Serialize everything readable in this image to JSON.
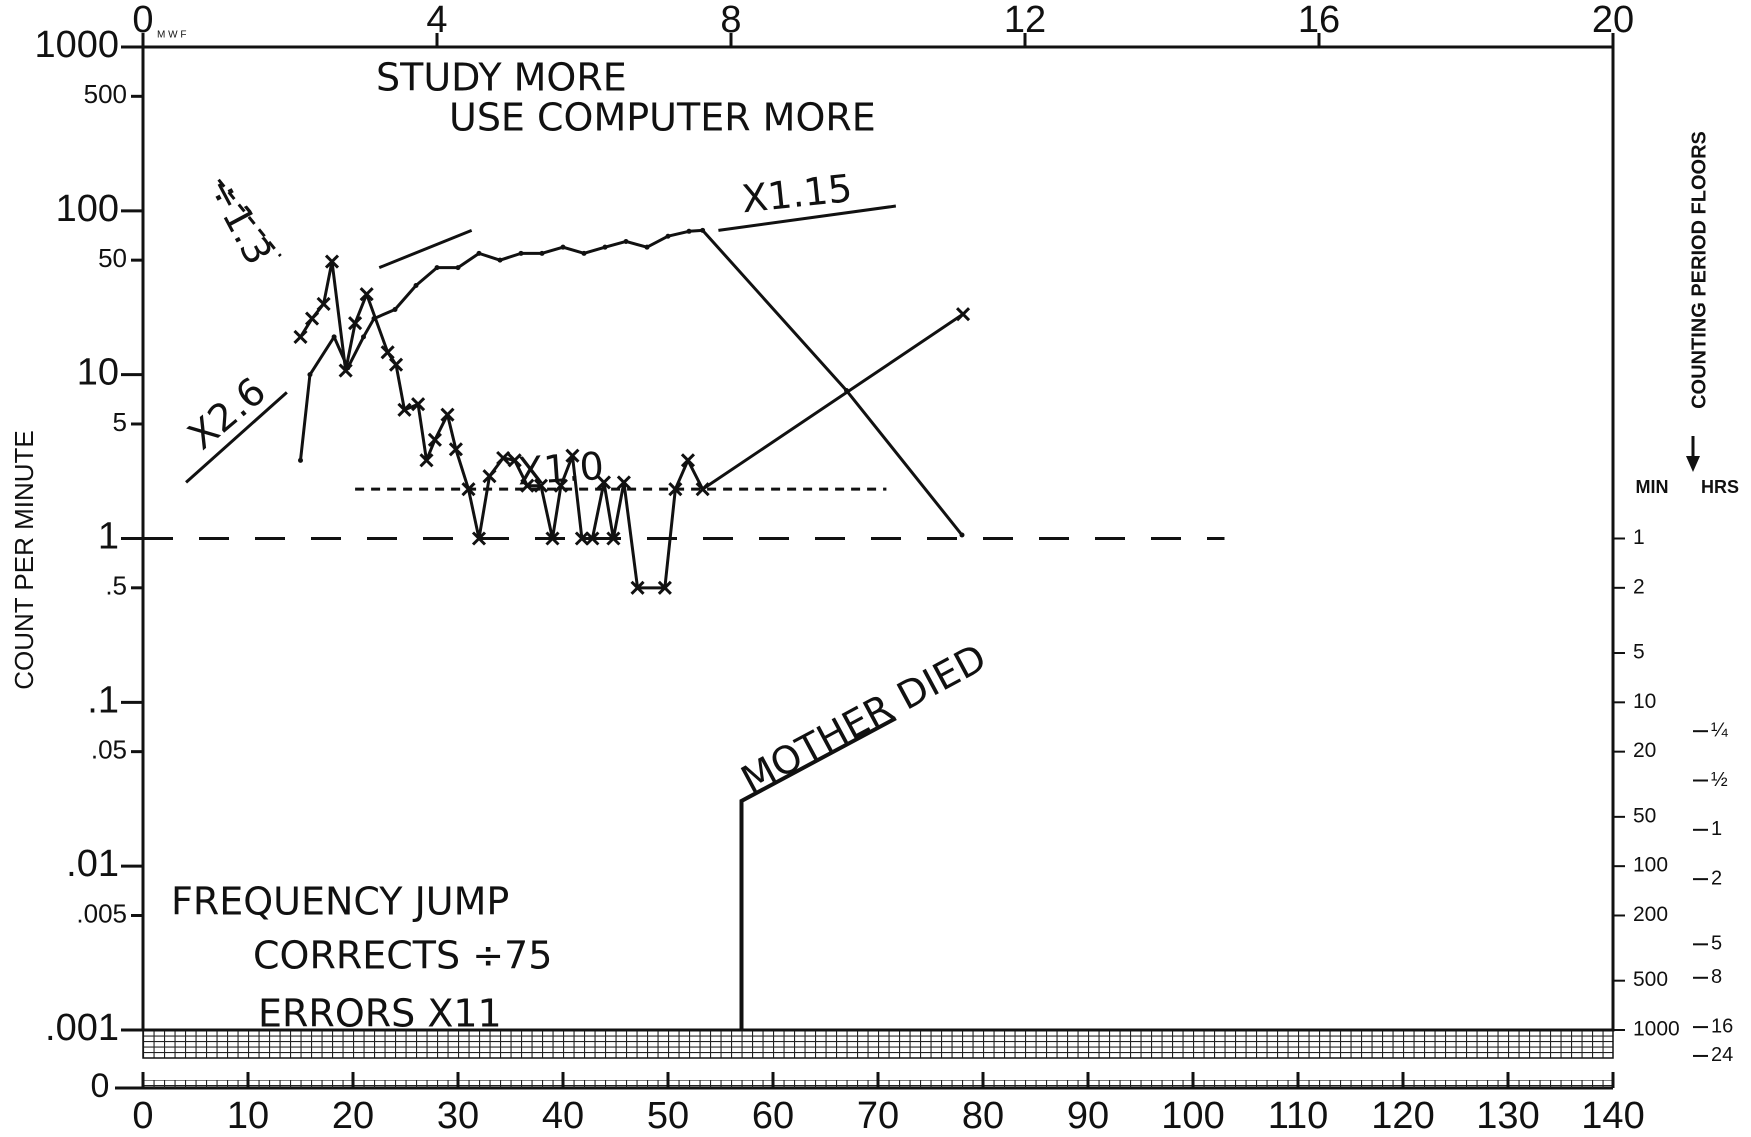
{
  "chart_data": {
    "type": "line",
    "ylog": true,
    "ylabel": "COUNT PER MINUTE",
    "ylim": [
      0.001,
      1000
    ],
    "yticks": [
      {
        "value": 0.001,
        "label": ".001"
      },
      {
        "value": 0.005,
        "label": ".005"
      },
      {
        "value": 0.01,
        "label": ".01"
      },
      {
        "value": 0.05,
        "label": ".05"
      },
      {
        "value": 0.1,
        "label": ".1"
      },
      {
        "value": 0.5,
        "label": ".5"
      },
      1,
      5,
      10,
      50,
      100,
      500,
      1000
    ],
    "y_zero_label": "0",
    "xlim": [
      0,
      140
    ],
    "xticks": [
      0,
      10,
      20,
      30,
      40,
      50,
      60,
      70,
      80,
      90,
      100,
      110,
      120,
      130,
      140
    ],
    "x2lim": [
      0,
      20
    ],
    "x2ticks": [
      0,
      4,
      8,
      12,
      16,
      20
    ],
    "x2_days_label": "M W F",
    "y2label": "COUNTING PERIOD FLOORS",
    "y2log": true,
    "y2lim": [
      1000,
      0.001
    ],
    "y2_min_label": "MIN",
    "y2ticks": [
      1,
      2,
      5,
      10,
      20,
      50,
      100,
      200,
      500,
      1000
    ],
    "y2_hrs_label": "HRS",
    "y2ticks_hrs": [
      {
        "value": 15,
        "label": "¼"
      },
      {
        "value": 30,
        "label": "½"
      },
      {
        "value": 60,
        "label": "1"
      },
      {
        "value": 120,
        "label": "2"
      },
      {
        "value": 300,
        "label": "5"
      },
      {
        "value": 480,
        "label": "8"
      },
      {
        "value": 960,
        "label": "16"
      },
      {
        "value": 1440,
        "label": "24"
      }
    ],
    "series": [
      {
        "color": "#111111",
        "marker": "none",
        "x": [
          15,
          15.9,
          18.2,
          19.5,
          21,
          22,
          24,
          26,
          28,
          30,
          32,
          34,
          36,
          38,
          40,
          42,
          44,
          46,
          48,
          50,
          52,
          53.3,
          67,
          78
        ],
        "values": [
          3,
          10,
          17,
          11,
          17,
          22,
          25,
          35,
          45,
          45,
          55,
          50,
          55,
          55,
          60,
          55,
          60,
          65,
          60,
          70,
          75,
          76,
          8,
          1.05
        ]
      },
      {
        "color": "#111111",
        "marker": "x",
        "x": [
          15,
          16.1,
          17.2,
          18,
          19.3,
          20.2,
          21.3,
          23.3,
          24.1,
          24.9,
          26.2,
          27,
          27.8,
          29,
          29.8,
          31,
          32,
          33,
          34.3,
          35.4,
          36.6,
          37.9,
          39,
          39.8,
          40.9,
          41.8,
          42.8,
          43.9,
          44.8,
          45.8,
          47.1,
          49.7,
          50.7,
          51.9,
          53.3,
          78.1
        ],
        "values": [
          17,
          22,
          27,
          49,
          10.6,
          20.6,
          31,
          13.7,
          11.5,
          6.1,
          6.6,
          3,
          4,
          5.7,
          3.5,
          2,
          1,
          2.4,
          3.1,
          3,
          2.1,
          2.1,
          1,
          2.1,
          3.2,
          1,
          1,
          2.2,
          1,
          2.2,
          0.5,
          0.5,
          2,
          3,
          2,
          23.4
        ]
      }
    ],
    "lines": [
      {
        "x": [
          4.1,
          13.7
        ],
        "values": [
          2.2,
          7.8
        ],
        "dash": "solid",
        "label": "X2.6"
      },
      {
        "x": [
          22.5,
          31.3
        ],
        "values": [
          45,
          76
        ],
        "dash": "solid"
      },
      {
        "x": [
          54.8,
          71.7
        ],
        "values": [
          76,
          107
        ],
        "dash": "solid",
        "label": "X1.15"
      },
      {
        "x": [
          7.2,
          13.1
        ],
        "values": [
          155,
          53
        ],
        "dash": "short",
        "label": "÷1.3"
      },
      {
        "x": [
          20.2,
          70.8
        ],
        "values": [
          2,
          2
        ],
        "dash": "short",
        "label": "X1.0"
      },
      {
        "x": [
          0,
          103
        ],
        "values": [
          1,
          1
        ],
        "dash": "long"
      }
    ],
    "event": {
      "x": [
        57,
        57,
        71.7
      ],
      "values": [
        0.001,
        0.025,
        0.08
      ],
      "label": "MOTHER DIED"
    },
    "notes": [
      "STUDY MORE",
      "USE COMPUTER MORE",
      "FREQUENCY JUMP",
      "CORRECTS ÷75",
      "ERRORS X11"
    ]
  }
}
